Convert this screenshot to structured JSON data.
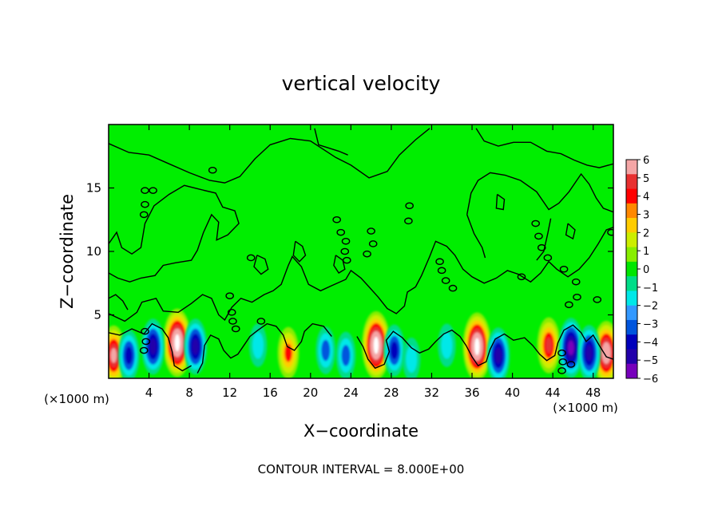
{
  "chart_data": {
    "type": "heatmap",
    "title": "vertical velocity",
    "xlabel": "X−coordinate",
    "ylabel": "Z−coordinate",
    "x_unit": "(×1000 m)",
    "x_unit_repeat": "(×1000 m)",
    "xlim": [
      0,
      50
    ],
    "ylim": [
      0,
      20
    ],
    "xticks": [
      4,
      8,
      12,
      16,
      20,
      24,
      28,
      32,
      36,
      40,
      44,
      48
    ],
    "yticks": [
      5,
      10,
      15
    ],
    "footer": "CONTOUR INTERVAL = 8.000E+00",
    "colorbar": {
      "labels": [
        "6",
        "5",
        "4",
        "3",
        "2",
        "1",
        "0",
        "−1",
        "−2",
        "−3",
        "−4",
        "−5",
        "−6"
      ],
      "colors": [
        "#f4a6a6",
        "#e83030",
        "#ff0000",
        "#ff8800",
        "#ffcc00",
        "#ccee00",
        "#88ee00",
        "#00e600",
        "#00dd88",
        "#00e8e8",
        "#3399ff",
        "#0055dd",
        "#0000bb",
        "#2200aa",
        "#7700bb"
      ]
    },
    "background_color": "#00ee00",
    "updraft_cores": [
      {
        "x": 0.5,
        "z": 1.8,
        "w": 6
      },
      {
        "x": 6.8,
        "z": 2.8,
        "w": 8
      },
      {
        "x": 17.8,
        "z": 2.0,
        "w": 4
      },
      {
        "x": 26.5,
        "z": 2.6,
        "w": 8
      },
      {
        "x": 36.5,
        "z": 2.5,
        "w": 8
      },
      {
        "x": 43.6,
        "z": 2.6,
        "w": 5
      },
      {
        "x": 49.3,
        "z": 2.0,
        "w": 7
      }
    ],
    "downdraft_cores": [
      {
        "x": 2.0,
        "z": 1.8,
        "w": -4
      },
      {
        "x": 4.4,
        "z": 2.5,
        "w": -5
      },
      {
        "x": 8.6,
        "z": 2.5,
        "w": -5
      },
      {
        "x": 14.8,
        "z": 2.6,
        "w": -2
      },
      {
        "x": 21.5,
        "z": 2.2,
        "w": -3
      },
      {
        "x": 23.5,
        "z": 1.8,
        "w": -3
      },
      {
        "x": 28.3,
        "z": 2.2,
        "w": -4
      },
      {
        "x": 30.0,
        "z": 1.5,
        "w": -2
      },
      {
        "x": 33.5,
        "z": 2.6,
        "w": -2
      },
      {
        "x": 38.6,
        "z": 1.8,
        "w": -5
      },
      {
        "x": 45.8,
        "z": 2.4,
        "w": -6
      },
      {
        "x": 47.6,
        "z": 2.0,
        "w": -5
      }
    ]
  }
}
